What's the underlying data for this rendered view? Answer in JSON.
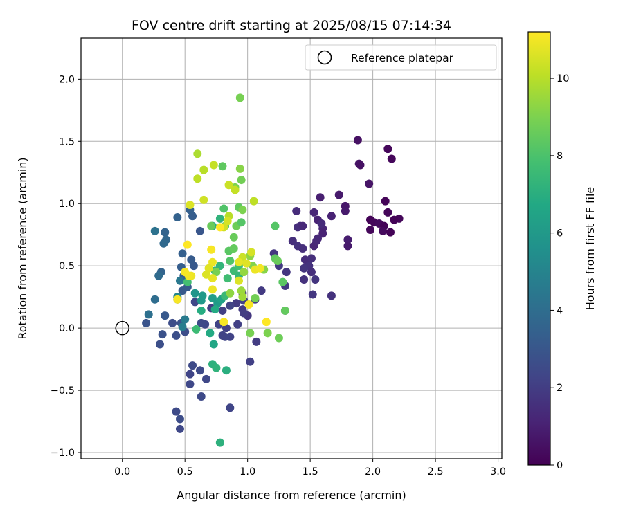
{
  "chart_data": {
    "type": "scatter",
    "title": "FOV centre drift starting at 2025/08/15 07:14:34",
    "xlabel": "Angular distance from reference (arcmin)",
    "ylabel": "Rotation from reference (arcmin)",
    "xlim": [
      -0.33,
      3.03
    ],
    "ylim": [
      -1.05,
      2.33
    ],
    "xticks": [
      "0.0",
      "0.5",
      "1.0",
      "1.5",
      "2.0",
      "2.5",
      "3.0"
    ],
    "yticks": [
      "−1.0",
      "−0.5",
      "0.0",
      "0.5",
      "1.0",
      "1.5",
      "2.0"
    ],
    "xtick_values": [
      0,
      0.5,
      1.0,
      1.5,
      2.0,
      2.5,
      3.0
    ],
    "ytick_values": [
      -1.0,
      -0.5,
      0,
      0.5,
      1.0,
      1.5,
      2.0
    ],
    "grid": true,
    "legend": {
      "placement": "top-right",
      "entries": [
        "Reference platepar"
      ]
    },
    "reference_point": {
      "x": 0.0,
      "y": 0.0
    },
    "colorbar": {
      "label": "Hours from first FF file",
      "range": [
        0,
        11.2
      ],
      "ticks": [
        "0",
        "2",
        "4",
        "6",
        "8",
        "10"
      ],
      "tick_values": [
        0,
        2,
        4,
        6,
        8,
        10
      ],
      "colormap": "viridis"
    },
    "points": [
      [
        2.12,
        1.44,
        0.2
      ],
      [
        2.15,
        1.36,
        0.2
      ],
      [
        1.98,
        0.87,
        0.1
      ],
      [
        2.01,
        0.85,
        0.2
      ],
      [
        2.05,
        0.84,
        0.3
      ],
      [
        2.09,
        0.82,
        0.1
      ],
      [
        2.12,
        0.93,
        0.2
      ],
      [
        2.1,
        1.02,
        0.1
      ],
      [
        1.98,
        0.79,
        0.2
      ],
      [
        2.08,
        0.78,
        0.3
      ],
      [
        2.14,
        0.77,
        0.1
      ],
      [
        2.21,
        0.88,
        0.2
      ],
      [
        2.17,
        0.87,
        0.1
      ],
      [
        1.88,
        1.51,
        0.5
      ],
      [
        1.89,
        1.32,
        0.6
      ],
      [
        1.9,
        1.31,
        0.5
      ],
      [
        1.97,
        1.16,
        0.6
      ],
      [
        1.73,
        1.07,
        0.8
      ],
      [
        1.78,
        0.98,
        0.7
      ],
      [
        1.78,
        0.94,
        0.8
      ],
      [
        1.8,
        0.71,
        0.9
      ],
      [
        1.8,
        0.66,
        0.8
      ],
      [
        1.58,
        1.05,
        1.0
      ],
      [
        1.67,
        0.9,
        1.1
      ],
      [
        1.53,
        0.93,
        1.2
      ],
      [
        1.56,
        0.87,
        1.1
      ],
      [
        1.6,
        0.8,
        1.2
      ],
      [
        1.6,
        0.76,
        1.1
      ],
      [
        1.56,
        0.72,
        1.3
      ],
      [
        1.53,
        0.66,
        1.2
      ],
      [
        1.59,
        0.84,
        1.4
      ],
      [
        1.55,
        0.7,
        1.3
      ],
      [
        1.42,
        0.82,
        1.4
      ],
      [
        1.4,
        0.81,
        1.5
      ],
      [
        1.44,
        0.82,
        1.3
      ],
      [
        1.39,
        0.94,
        1.4
      ],
      [
        1.36,
        0.7,
        1.5
      ],
      [
        1.4,
        0.66,
        1.6
      ],
      [
        1.44,
        0.64,
        1.5
      ],
      [
        1.46,
        0.55,
        1.4
      ],
      [
        1.51,
        0.56,
        1.5
      ],
      [
        1.49,
        0.5,
        1.6
      ],
      [
        1.45,
        0.48,
        1.7
      ],
      [
        1.51,
        0.45,
        1.5
      ],
      [
        1.45,
        0.39,
        1.6
      ],
      [
        1.54,
        0.39,
        1.7
      ],
      [
        1.52,
        0.27,
        1.8
      ],
      [
        1.67,
        0.26,
        1.6
      ],
      [
        1.21,
        0.6,
        1.8
      ],
      [
        1.25,
        0.5,
        1.9
      ],
      [
        1.31,
        0.45,
        1.8
      ],
      [
        1.3,
        0.34,
        1.9
      ],
      [
        1.3,
        0.14,
        2.0
      ],
      [
        1.11,
        0.3,
        1.9
      ],
      [
        1.06,
        0.23,
        2.0
      ],
      [
        0.96,
        0.28,
        2.0
      ],
      [
        0.91,
        0.2,
        1.9
      ],
      [
        0.97,
        0.22,
        2.1
      ],
      [
        1.0,
        0.1,
        1.8
      ],
      [
        0.96,
        0.15,
        1.9
      ],
      [
        0.97,
        0.12,
        2.0
      ],
      [
        0.92,
        0.03,
        2.1
      ],
      [
        1.07,
        -0.11,
        2.0
      ],
      [
        1.02,
        -0.27,
        2.1
      ],
      [
        0.86,
        -0.07,
        2.2
      ],
      [
        0.83,
        0.0,
        2.1
      ],
      [
        0.77,
        0.03,
        2.2
      ],
      [
        0.71,
        0.16,
        2.0
      ],
      [
        0.8,
        0.14,
        2.1
      ],
      [
        0.86,
        0.18,
        2.2
      ],
      [
        0.82,
        -0.07,
        2.3
      ],
      [
        0.8,
        -0.06,
        2.2
      ],
      [
        0.66,
        0.03,
        2.4
      ],
      [
        0.63,
        0.04,
        2.5
      ],
      [
        0.58,
        0.21,
        2.4
      ],
      [
        0.56,
        -0.3,
        2.5
      ],
      [
        0.54,
        -0.37,
        2.3
      ],
      [
        0.54,
        -0.45,
        2.4
      ],
      [
        0.62,
        -0.34,
        2.5
      ],
      [
        0.67,
        -0.41,
        2.4
      ],
      [
        0.63,
        -0.55,
        2.5
      ],
      [
        0.86,
        -0.64,
        2.3
      ],
      [
        0.43,
        -0.67,
        2.5
      ],
      [
        0.46,
        -0.73,
        2.6
      ],
      [
        0.46,
        -0.81,
        2.4
      ],
      [
        0.5,
        -0.03,
        2.6
      ],
      [
        0.43,
        -0.06,
        2.7
      ],
      [
        0.32,
        -0.05,
        2.8
      ],
      [
        0.3,
        -0.13,
        2.7
      ],
      [
        0.19,
        0.04,
        2.9
      ],
      [
        0.4,
        0.04,
        2.6
      ],
      [
        0.47,
        0.04,
        2.8
      ],
      [
        0.62,
        0.78,
        3.0
      ],
      [
        0.34,
        0.1,
        3.1
      ],
      [
        0.44,
        0.23,
        3.0
      ],
      [
        0.48,
        0.3,
        3.1
      ],
      [
        0.52,
        0.33,
        3.2
      ],
      [
        0.49,
        0.42,
        3.3
      ],
      [
        0.57,
        0.5,
        3.1
      ],
      [
        0.55,
        0.55,
        3.2
      ],
      [
        0.47,
        0.49,
        3.3
      ],
      [
        0.48,
        0.6,
        3.4
      ],
      [
        0.56,
        0.9,
        3.3
      ],
      [
        0.54,
        0.95,
        3.4
      ],
      [
        0.44,
        0.89,
        3.5
      ],
      [
        0.34,
        0.77,
        3.6
      ],
      [
        0.35,
        0.71,
        3.7
      ],
      [
        0.31,
        0.45,
        3.6
      ],
      [
        0.33,
        0.68,
        3.8
      ],
      [
        0.29,
        0.42,
        3.9
      ],
      [
        0.26,
        0.23,
        4.0
      ],
      [
        0.21,
        0.11,
        4.1
      ],
      [
        0.26,
        0.78,
        4.2
      ],
      [
        0.46,
        0.38,
        4.5
      ],
      [
        0.5,
        0.07,
        4.6
      ],
      [
        0.48,
        0.01,
        4.7
      ],
      [
        0.44,
        0.25,
        5.0
      ],
      [
        0.58,
        0.28,
        5.8
      ],
      [
        0.63,
        0.22,
        5.9
      ],
      [
        0.64,
        0.26,
        6.0
      ],
      [
        0.72,
        0.24,
        6.2
      ],
      [
        0.76,
        0.2,
        6.1
      ],
      [
        0.79,
        0.23,
        6.4
      ],
      [
        0.74,
        0.15,
        6.8
      ],
      [
        0.63,
        0.14,
        6.9
      ],
      [
        0.73,
        -0.13,
        6.6
      ],
      [
        0.7,
        -0.04,
        6.8
      ],
      [
        0.72,
        -0.29,
        7.1
      ],
      [
        0.75,
        -0.32,
        7.2
      ],
      [
        0.83,
        -0.34,
        7.0
      ],
      [
        0.78,
        -0.92,
        7.1
      ],
      [
        0.59,
        -0.01,
        7.6
      ],
      [
        0.52,
        0.37,
        7.8
      ],
      [
        0.72,
        0.82,
        6.8
      ],
      [
        0.78,
        0.88,
        7.2
      ],
      [
        0.74,
        0.46,
        7.4
      ],
      [
        0.78,
        0.5,
        7.3
      ],
      [
        0.82,
        0.26,
        7.5
      ],
      [
        0.84,
        0.4,
        7.7
      ],
      [
        0.89,
        0.46,
        7.6
      ],
      [
        0.93,
        0.42,
        7.4
      ],
      [
        0.93,
        0.5,
        7.8
      ],
      [
        1.22,
        0.82,
        8.2
      ],
      [
        1.22,
        0.56,
        8.4
      ],
      [
        1.24,
        0.54,
        8.6
      ],
      [
        1.28,
        0.37,
        8.3
      ],
      [
        1.3,
        0.14,
        8.5
      ],
      [
        1.25,
        -0.08,
        8.7
      ],
      [
        1.16,
        -0.04,
        9.0
      ],
      [
        1.06,
        0.24,
        8.8
      ],
      [
        1.04,
        0.5,
        9.1
      ],
      [
        1.13,
        0.47,
        9.2
      ],
      [
        1.02,
        0.58,
        9.3
      ],
      [
        0.71,
        0.82,
        8.6
      ],
      [
        0.8,
        1.3,
        8.4
      ],
      [
        0.81,
        0.96,
        8.1
      ],
      [
        0.82,
        0.82,
        8.2
      ],
      [
        0.85,
        0.62,
        8.3
      ],
      [
        0.89,
        0.64,
        8.5
      ],
      [
        0.86,
        0.54,
        8.1
      ],
      [
        0.89,
        0.73,
        8.6
      ],
      [
        0.91,
        0.82,
        8.7
      ],
      [
        0.95,
        0.85,
        8.2
      ],
      [
        0.93,
        0.97,
        8.4
      ],
      [
        0.96,
        0.95,
        9.0
      ],
      [
        0.94,
        1.28,
        9.2
      ],
      [
        0.95,
        1.19,
        8.8
      ],
      [
        0.9,
        1.13,
        9.0
      ],
      [
        0.94,
        1.85,
        8.9
      ],
      [
        0.97,
        0.45,
        9.4
      ],
      [
        0.95,
        0.3,
        9.5
      ],
      [
        0.96,
        0.25,
        9.6
      ],
      [
        0.86,
        0.28,
        9.3
      ],
      [
        1.02,
        -0.04,
        8.9
      ],
      [
        0.75,
        0.45,
        8.9
      ],
      [
        0.6,
        1.4,
        9.8
      ],
      [
        0.6,
        1.2,
        10.1
      ],
      [
        0.65,
        1.27,
        10.0
      ],
      [
        0.73,
        1.31,
        10.2
      ],
      [
        0.65,
        1.03,
        10.4
      ],
      [
        0.54,
        0.99,
        10.6
      ],
      [
        0.85,
        1.15,
        10.3
      ],
      [
        0.9,
        1.11,
        10.2
      ],
      [
        0.85,
        0.9,
        10.0
      ],
      [
        0.81,
        0.81,
        10.4
      ],
      [
        0.84,
        0.86,
        10.5
      ],
      [
        1.05,
        1.02,
        10.1
      ],
      [
        0.96,
        0.57,
        10.3
      ],
      [
        1.03,
        0.61,
        10.5
      ],
      [
        0.93,
        0.53,
        10.8
      ],
      [
        0.93,
        0.38,
        10.6
      ],
      [
        0.99,
        0.52,
        10.7
      ],
      [
        1.06,
        0.47,
        10.9
      ],
      [
        1.1,
        0.48,
        11.0
      ],
      [
        0.71,
        0.63,
        11.1
      ],
      [
        0.72,
        0.53,
        10.9
      ],
      [
        0.69,
        0.48,
        10.7
      ],
      [
        0.67,
        0.43,
        10.6
      ],
      [
        0.72,
        0.4,
        10.8
      ],
      [
        0.72,
        0.31,
        10.9
      ],
      [
        0.55,
        0.42,
        10.9
      ],
      [
        0.53,
        0.42,
        11.0
      ],
      [
        0.5,
        0.45,
        11.1
      ],
      [
        0.52,
        0.67,
        11.2
      ],
      [
        0.44,
        0.23,
        11.1
      ],
      [
        0.81,
        0.05,
        11.1
      ],
      [
        1.01,
        0.19,
        11.1
      ],
      [
        1.15,
        0.05,
        11.2
      ],
      [
        0.78,
        0.81,
        11.2
      ]
    ]
  }
}
